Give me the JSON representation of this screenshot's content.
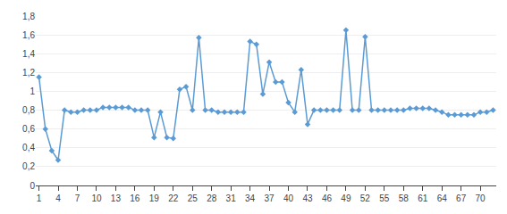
{
  "chart_data": {
    "type": "line",
    "x": [
      1,
      2,
      3,
      4,
      5,
      6,
      7,
      8,
      9,
      10,
      11,
      12,
      13,
      14,
      15,
      16,
      17,
      18,
      19,
      20,
      21,
      22,
      23,
      24,
      25,
      26,
      27,
      28,
      29,
      30,
      31,
      32,
      33,
      34,
      35,
      36,
      37,
      38,
      39,
      40,
      41,
      42,
      43,
      44,
      45,
      46,
      47,
      48,
      49,
      50,
      51,
      52,
      53,
      54,
      55,
      56,
      57,
      58,
      59,
      60,
      61,
      62,
      63,
      64,
      65,
      66,
      67,
      68,
      69,
      70,
      71,
      72
    ],
    "values": [
      1.15,
      0.6,
      0.37,
      0.27,
      0.8,
      0.78,
      0.78,
      0.8,
      0.8,
      0.8,
      0.83,
      0.83,
      0.83,
      0.83,
      0.83,
      0.8,
      0.8,
      0.8,
      0.51,
      0.78,
      0.51,
      0.5,
      1.02,
      1.05,
      0.8,
      1.57,
      0.8,
      0.8,
      0.78,
      0.78,
      0.78,
      0.78,
      0.78,
      1.53,
      1.5,
      0.97,
      1.31,
      1.1,
      1.1,
      0.88,
      0.78,
      1.23,
      0.65,
      0.8,
      0.8,
      0.8,
      0.8,
      0.8,
      1.65,
      0.8,
      0.8,
      1.58,
      0.8,
      0.8,
      0.8,
      0.8,
      0.8,
      0.8,
      0.82,
      0.82,
      0.82,
      0.82,
      0.8,
      0.78,
      0.75,
      0.75,
      0.75,
      0.75,
      0.75,
      0.78,
      0.78,
      0.8
    ],
    "color": "#5B9BD5",
    "marker": "diamond",
    "xlim": [
      0.5,
      72.5
    ],
    "ylim": [
      0,
      1.8
    ],
    "xticks": [
      1,
      4,
      7,
      10,
      13,
      16,
      19,
      22,
      25,
      28,
      31,
      34,
      37,
      40,
      43,
      46,
      49,
      52,
      55,
      58,
      61,
      64,
      67,
      70
    ],
    "yticks": [
      0,
      {
        "value": 0.2,
        "label": "0,2"
      },
      {
        "value": 0.4,
        "label": "0,4"
      },
      {
        "value": 0.6,
        "label": "0,6"
      },
      {
        "value": 0.8,
        "label": "0,8"
      },
      1,
      {
        "value": 1.2,
        "label": "1,2"
      },
      {
        "value": 1.4,
        "label": "1,4"
      },
      {
        "value": 1.6,
        "label": "1,6"
      },
      {
        "value": 1.8,
        "label": "1,8"
      }
    ],
    "grid": true
  }
}
